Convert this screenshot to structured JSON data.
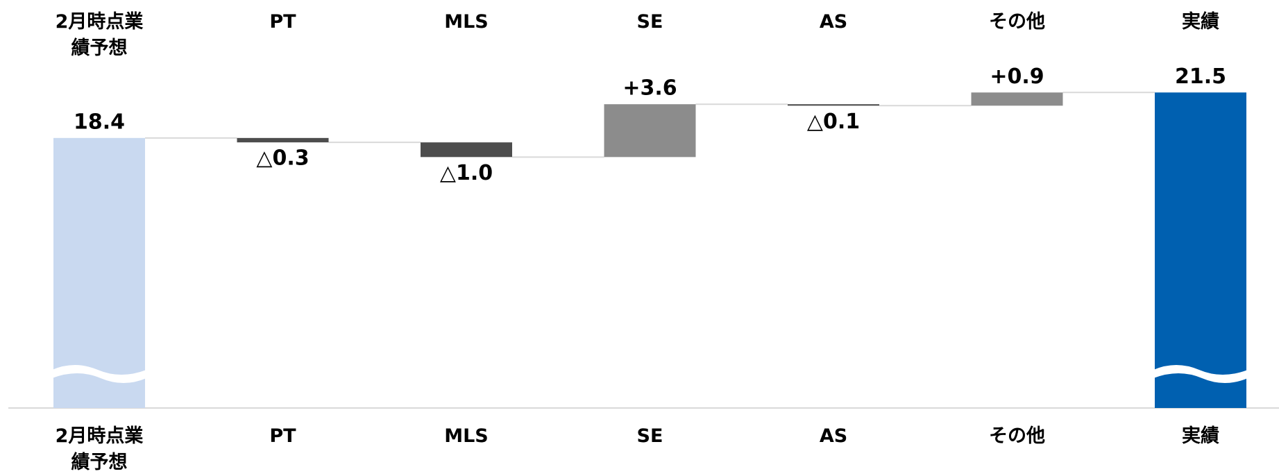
{
  "chart_data": {
    "type": "waterfall",
    "categories": [
      "2月時点業績予想",
      "PT",
      "MLS",
      "SE",
      "AS",
      "その他",
      "実績"
    ],
    "values": [
      18.4,
      -0.3,
      -1.0,
      3.6,
      -0.1,
      0.9,
      21.5
    ],
    "value_labels": [
      "18.4",
      "△0.3",
      "△1.0",
      "+3.6",
      "△0.1",
      "+0.9",
      "21.5"
    ],
    "measures": [
      "absolute",
      "relative",
      "relative",
      "relative",
      "relative",
      "relative",
      "total"
    ],
    "colors": [
      "#c9d9f0",
      "#4d4d4d",
      "#4d4d4d",
      "#8c8c8c",
      "#4d4d4d",
      "#8c8c8c",
      "#0060b0"
    ]
  }
}
